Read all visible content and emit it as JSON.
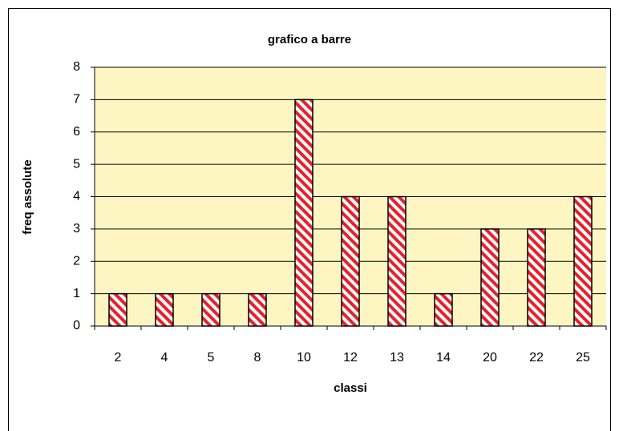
{
  "chart_data": {
    "type": "bar",
    "title": "grafico a barre",
    "x_label": "classi",
    "y_label": "freq assolute",
    "categories": [
      "2",
      "4",
      "5",
      "8",
      "10",
      "12",
      "13",
      "14",
      "20",
      "22",
      "25"
    ],
    "values": [
      1,
      1,
      1,
      1,
      7,
      4,
      4,
      1,
      3,
      3,
      4
    ],
    "color": "#e8202a",
    "ylim": [
      0,
      8
    ],
    "yticks": [
      0,
      1,
      2,
      3,
      4,
      5,
      6,
      7,
      8
    ],
    "grid": true
  }
}
